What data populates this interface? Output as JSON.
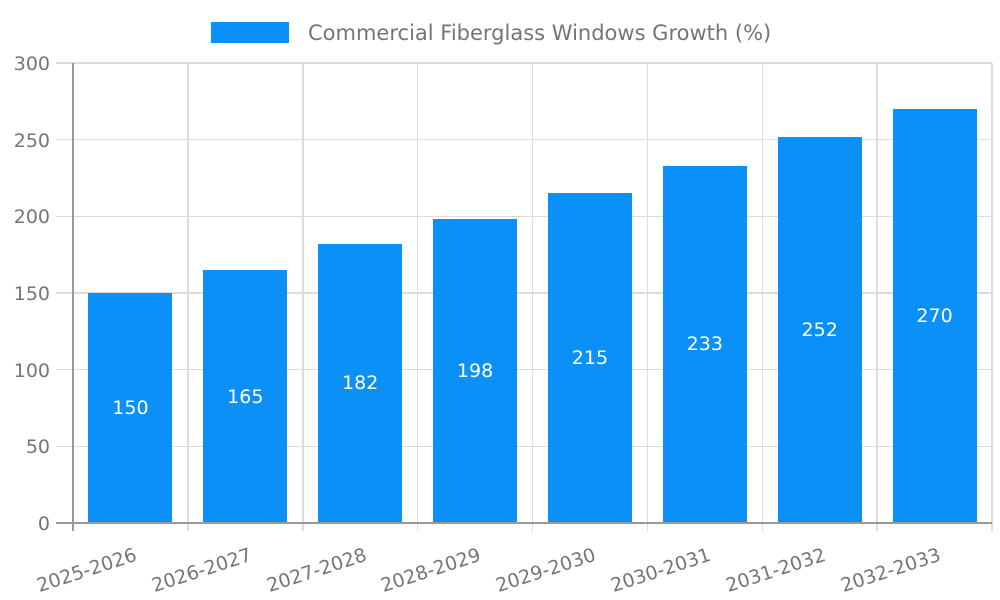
{
  "legend": {
    "label": "Commercial Fiberglass Windows Growth (%)"
  },
  "chart_data": {
    "type": "bar",
    "title": "Commercial Fiberglass Windows Growth (%)",
    "series_name": "Commercial Fiberglass Windows Growth (%)",
    "categories": [
      "2025-2026",
      "2026-2027",
      "2027-2028",
      "2028-2029",
      "2029-2030",
      "2030-2031",
      "2031-2032",
      "2032-2033"
    ],
    "values": [
      150,
      165,
      182,
      198,
      215,
      233,
      252,
      270
    ],
    "value_labels": [
      "150",
      "165",
      "182",
      "198",
      "215",
      "233",
      "252",
      "270"
    ],
    "xlabel": "",
    "ylabel": "",
    "ylim": [
      0,
      300
    ],
    "yticks": [
      0,
      50,
      100,
      150,
      200,
      250,
      300
    ],
    "grid": true,
    "legend_position": "top-center",
    "x_label_rotation_deg": -18,
    "bar_color": "#0b90f7",
    "value_label_color": "#ffffff",
    "axis_color": "#999999",
    "grid_color": "#dcdcdc",
    "tick_label_color": "#757575",
    "background_color": "#ffffff"
  }
}
